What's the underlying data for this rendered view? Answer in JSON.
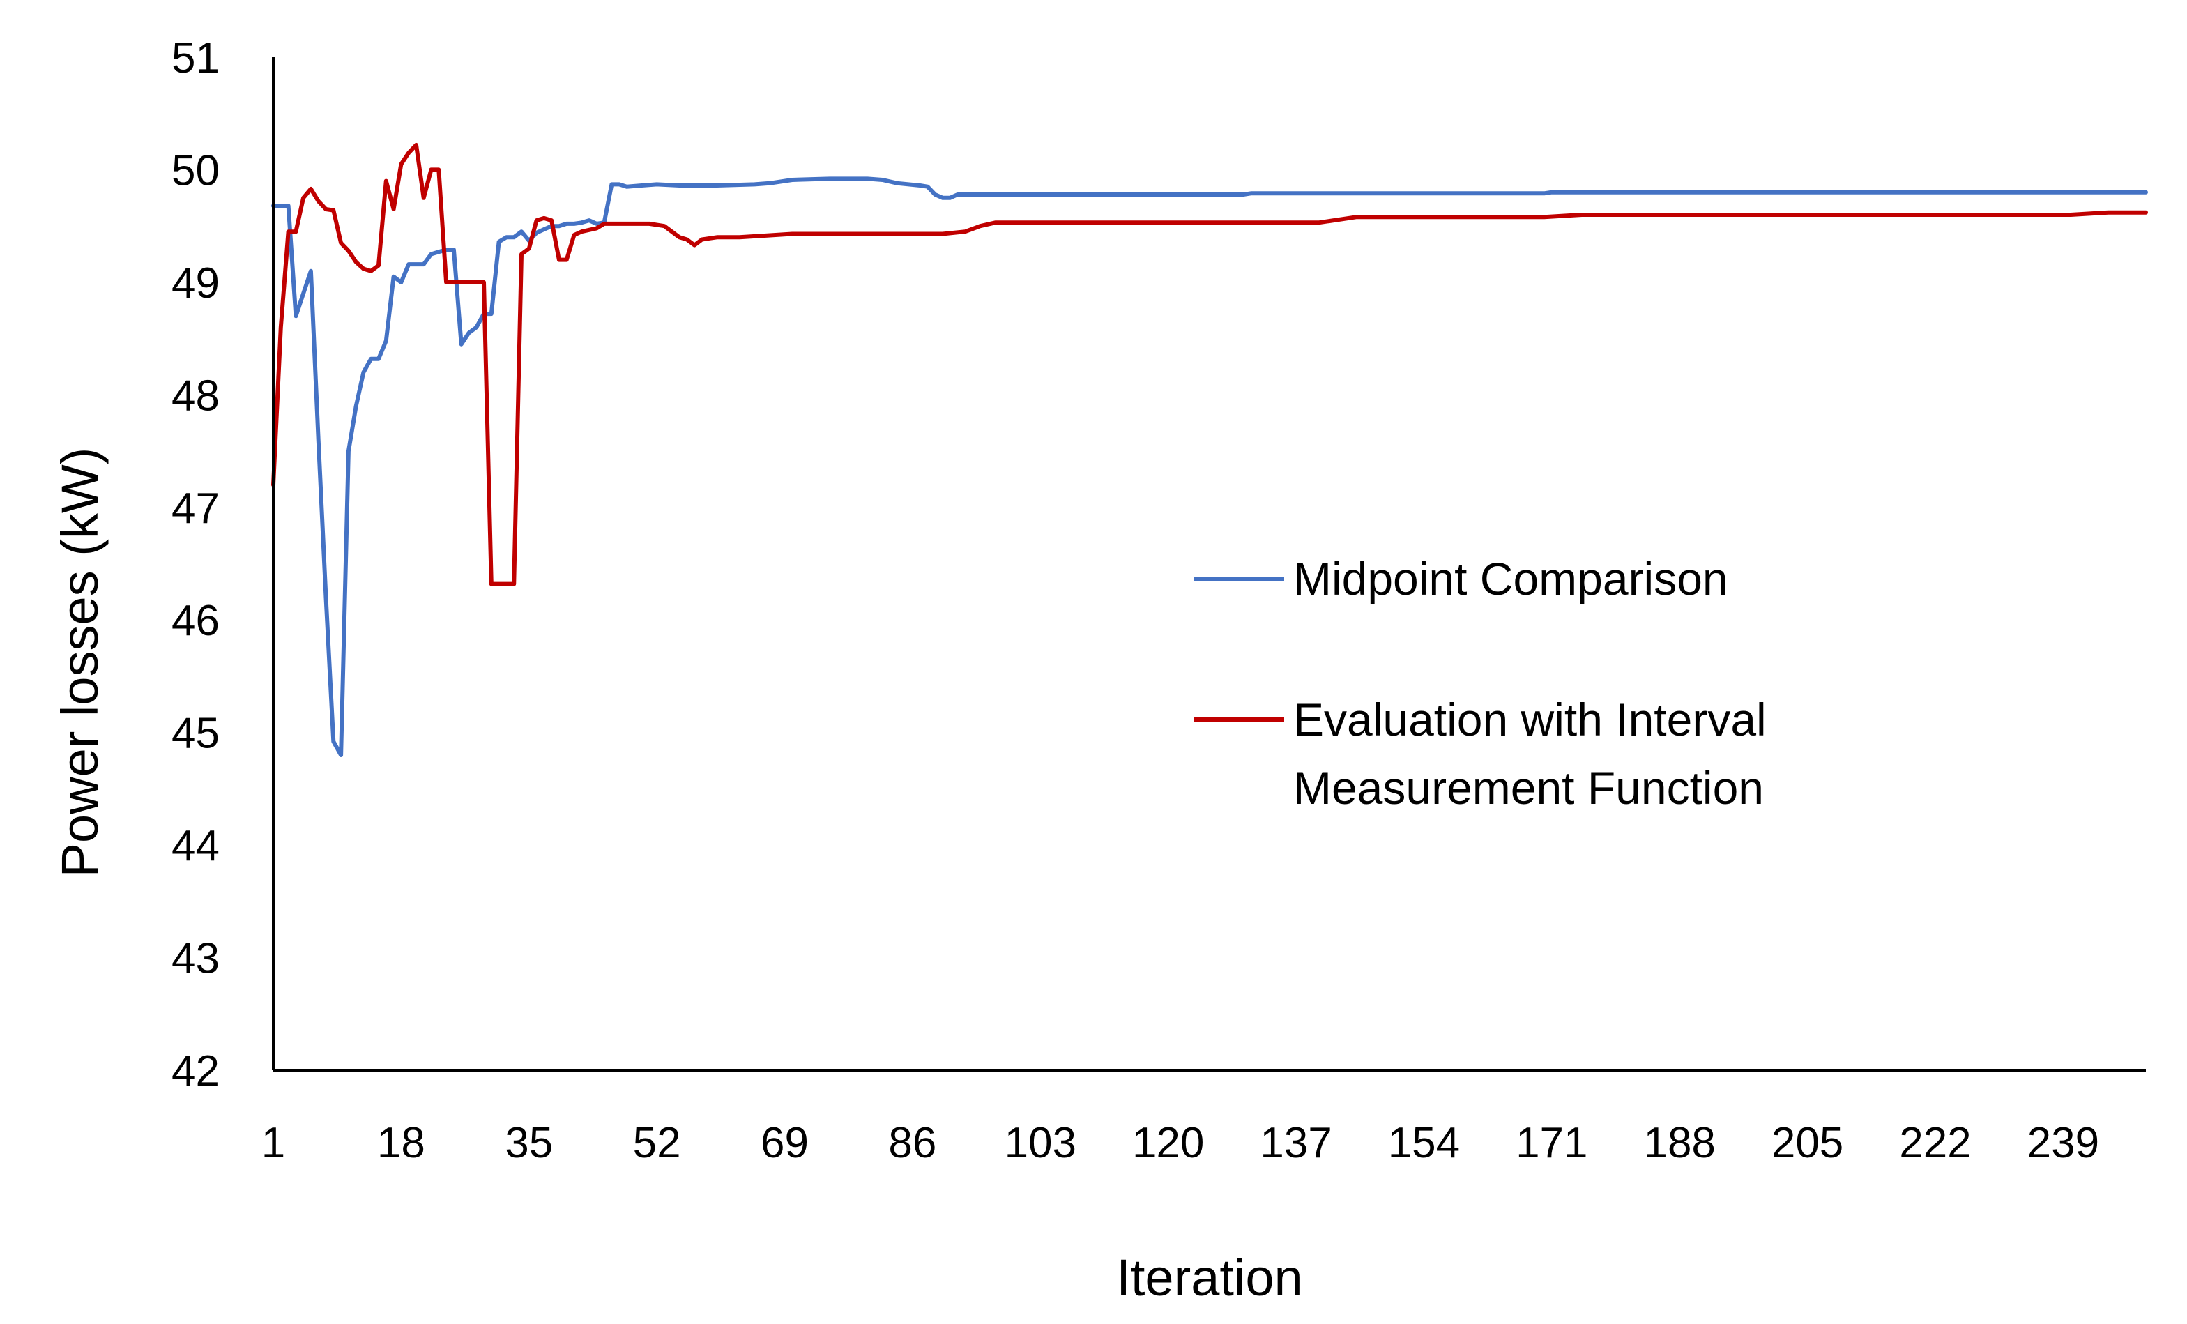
{
  "chart_data": {
    "type": "line",
    "title": "",
    "xlabel": "Iteration",
    "ylabel": "Power losses (kW)",
    "ylim": [
      42,
      51
    ],
    "xlim": [
      1,
      250
    ],
    "y_ticks": [
      "42",
      "43",
      "44",
      "45",
      "46",
      "47",
      "48",
      "49",
      "50",
      "51"
    ],
    "x_ticks": [
      "1",
      "18",
      "35",
      "52",
      "69",
      "86",
      "103",
      "120",
      "137",
      "154",
      "171",
      "188",
      "205",
      "222",
      "239"
    ],
    "grid": false,
    "legend_position": "center-right",
    "colors": {
      "midpoint": "#4472C4",
      "interval": "#C00000",
      "axis": "#000000"
    },
    "series": [
      {
        "name": "Midpoint Comparison",
        "legend_lines": [
          "Midpoint Comparison"
        ],
        "color": "#4472C4",
        "points": [
          [
            1,
            49.68
          ],
          [
            2,
            49.68
          ],
          [
            3,
            49.68
          ],
          [
            4,
            48.7
          ],
          [
            5,
            48.9
          ],
          [
            6,
            49.1
          ],
          [
            7,
            47.6
          ],
          [
            8,
            46.2
          ],
          [
            9,
            44.92
          ],
          [
            10,
            44.8
          ],
          [
            11,
            47.5
          ],
          [
            12,
            47.9
          ],
          [
            13,
            48.2
          ],
          [
            14,
            48.32
          ],
          [
            15,
            48.32
          ],
          [
            16,
            48.48
          ],
          [
            17,
            49.05
          ],
          [
            18,
            49.0
          ],
          [
            19,
            49.16
          ],
          [
            20,
            49.16
          ],
          [
            21,
            49.16
          ],
          [
            22,
            49.25
          ],
          [
            23,
            49.27
          ],
          [
            24,
            49.29
          ],
          [
            25,
            49.29
          ],
          [
            26,
            48.45
          ],
          [
            27,
            48.55
          ],
          [
            28,
            48.6
          ],
          [
            29,
            48.72
          ],
          [
            30,
            48.72
          ],
          [
            31,
            49.36
          ],
          [
            32,
            49.4
          ],
          [
            33,
            49.4
          ],
          [
            34,
            49.45
          ],
          [
            35,
            49.37
          ],
          [
            36,
            49.44
          ],
          [
            37,
            49.47
          ],
          [
            38,
            49.5
          ],
          [
            39,
            49.5
          ],
          [
            40,
            49.52
          ],
          [
            41,
            49.52
          ],
          [
            42,
            49.53
          ],
          [
            43,
            49.55
          ],
          [
            44,
            49.52
          ],
          [
            45,
            49.53
          ],
          [
            46,
            49.87
          ],
          [
            47,
            49.87
          ],
          [
            48,
            49.85
          ],
          [
            50,
            49.86
          ],
          [
            52,
            49.87
          ],
          [
            55,
            49.86
          ],
          [
            60,
            49.86
          ],
          [
            65,
            49.87
          ],
          [
            67,
            49.88
          ],
          [
            70,
            49.91
          ],
          [
            75,
            49.92
          ],
          [
            80,
            49.92
          ],
          [
            82,
            49.91
          ],
          [
            84,
            49.88
          ],
          [
            87,
            49.86
          ],
          [
            88,
            49.85
          ],
          [
            89,
            49.78
          ],
          [
            90,
            49.75
          ],
          [
            91,
            49.75
          ],
          [
            92,
            49.78
          ],
          [
            100,
            49.78
          ],
          [
            130,
            49.78
          ],
          [
            131,
            49.79
          ],
          [
            170,
            49.79
          ],
          [
            171,
            49.8
          ],
          [
            250,
            49.8
          ]
        ]
      },
      {
        "name": "Evaluation with Interval Measurement Function",
        "legend_lines": [
          "Evaluation with Interval",
          "Measurement Function"
        ],
        "color": "#C00000",
        "points": [
          [
            1,
            47.2
          ],
          [
            2,
            48.6
          ],
          [
            3,
            49.45
          ],
          [
            4,
            49.45
          ],
          [
            5,
            49.75
          ],
          [
            6,
            49.83
          ],
          [
            7,
            49.72
          ],
          [
            8,
            49.65
          ],
          [
            9,
            49.64
          ],
          [
            10,
            49.35
          ],
          [
            11,
            49.28
          ],
          [
            12,
            49.18
          ],
          [
            13,
            49.12
          ],
          [
            14,
            49.1
          ],
          [
            15,
            49.15
          ],
          [
            16,
            49.9
          ],
          [
            17,
            49.65
          ],
          [
            18,
            50.05
          ],
          [
            19,
            50.15
          ],
          [
            20,
            50.22
          ],
          [
            21,
            49.75
          ],
          [
            22,
            50.0
          ],
          [
            23,
            50.0
          ],
          [
            24,
            49.0
          ],
          [
            28,
            49.0
          ],
          [
            29,
            49.0
          ],
          [
            30,
            46.32
          ],
          [
            33,
            46.32
          ],
          [
            34,
            49.25
          ],
          [
            35,
            49.3
          ],
          [
            36,
            49.55
          ],
          [
            37,
            49.57
          ],
          [
            38,
            49.55
          ],
          [
            39,
            49.2
          ],
          [
            40,
            49.2
          ],
          [
            41,
            49.42
          ],
          [
            42,
            49.45
          ],
          [
            44,
            49.48
          ],
          [
            45,
            49.52
          ],
          [
            47,
            49.52
          ],
          [
            49,
            49.52
          ],
          [
            51,
            49.52
          ],
          [
            53,
            49.5
          ],
          [
            55,
            49.4
          ],
          [
            56,
            49.38
          ],
          [
            57,
            49.33
          ],
          [
            58,
            49.38
          ],
          [
            60,
            49.4
          ],
          [
            63,
            49.4
          ],
          [
            70,
            49.43
          ],
          [
            90,
            49.43
          ],
          [
            93,
            49.45
          ],
          [
            95,
            49.5
          ],
          [
            97,
            49.53
          ],
          [
            110,
            49.53
          ],
          [
            140,
            49.53
          ],
          [
            145,
            49.58
          ],
          [
            150,
            49.58
          ],
          [
            170,
            49.58
          ],
          [
            175,
            49.6
          ],
          [
            240,
            49.6
          ],
          [
            245,
            49.62
          ],
          [
            250,
            49.62
          ]
        ]
      }
    ]
  }
}
